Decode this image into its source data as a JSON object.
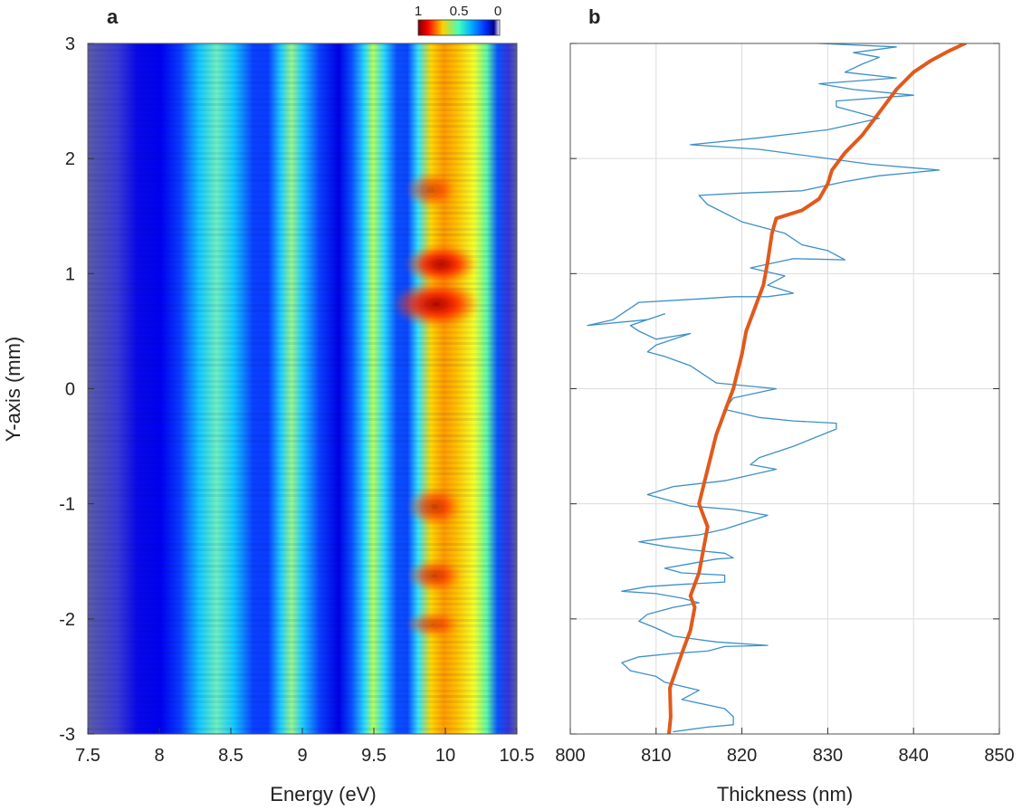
{
  "panels": {
    "a": "a",
    "b": "b"
  },
  "colorbar": {
    "labels": [
      "1",
      "0.5",
      "0"
    ],
    "values": [
      1,
      0.5,
      0
    ]
  },
  "chart_data": [
    {
      "panel": "a",
      "type": "heatmap",
      "colormap": "jet-reversed (1 = dark red, 0.5 = cyan/green, 0 = dark blue/white)",
      "xlabel": "Energy (eV)",
      "ylabel": "Y-axis (mm)",
      "xlim": [
        7.5,
        10.5
      ],
      "ylim": [
        -3,
        3
      ],
      "xticks": [
        "7.5",
        "8",
        "8.5",
        "9",
        "9.5",
        "10",
        "10.5"
      ],
      "xtick_values": [
        7.5,
        8,
        8.5,
        9,
        9.5,
        10,
        10.5
      ],
      "yticks": [
        "3",
        "2",
        "1",
        "0",
        "-1",
        "-2",
        "-3"
      ],
      "ytick_values": [
        3,
        2,
        1,
        0,
        -1,
        -2,
        -3
      ],
      "bands": [
        {
          "center_eV": 8.45,
          "peak_intensity": 0.5
        },
        {
          "center_eV": 8.88,
          "peak_intensity": 0.55
        },
        {
          "center_eV": 9.38,
          "peak_intensity": 0.6
        },
        {
          "center_eV": 9.98,
          "peak_intensity": 0.95
        }
      ]
    },
    {
      "panel": "b",
      "type": "line",
      "xlabel": "Thickness (nm)",
      "ylabel": "",
      "xlim": [
        800,
        850
      ],
      "ylim": [
        -3,
        3
      ],
      "xticks": [
        "800",
        "810",
        "820",
        "830",
        "840",
        "850"
      ],
      "xtick_values": [
        800,
        810,
        820,
        830,
        840,
        850
      ],
      "grid": true,
      "series": [
        {
          "color": "#3d8fc8",
          "width": 1.3,
          "points": [
            [
              812,
              -2.98
            ],
            [
              816,
              -2.94
            ],
            [
              819,
              -2.92
            ],
            [
              819,
              -2.85
            ],
            [
              818,
              -2.78
            ],
            [
              813,
              -2.7
            ],
            [
              815,
              -2.62
            ],
            [
              811,
              -2.55
            ],
            [
              810,
              -2.5
            ],
            [
              807,
              -2.45
            ],
            [
              806,
              -2.38
            ],
            [
              808,
              -2.33
            ],
            [
              812,
              -2.3
            ],
            [
              816,
              -2.28
            ],
            [
              818,
              -2.24
            ],
            [
              823,
              -2.23
            ],
            [
              817,
              -2.2
            ],
            [
              812,
              -2.15
            ],
            [
              810,
              -2.08
            ],
            [
              808,
              -2.02
            ],
            [
              809,
              -1.96
            ],
            [
              812,
              -1.9
            ],
            [
              815,
              -1.86
            ],
            [
              813,
              -1.82
            ],
            [
              810,
              -1.78
            ],
            [
              806,
              -1.76
            ],
            [
              809,
              -1.72
            ],
            [
              813,
              -1.7
            ],
            [
              818,
              -1.68
            ],
            [
              818,
              -1.62
            ],
            [
              813,
              -1.6
            ],
            [
              811,
              -1.56
            ],
            [
              814,
              -1.52
            ],
            [
              817,
              -1.48
            ],
            [
              819,
              -1.47
            ],
            [
              818,
              -1.43
            ],
            [
              814,
              -1.4
            ],
            [
              811,
              -1.37
            ],
            [
              808,
              -1.33
            ],
            [
              811,
              -1.3
            ],
            [
              815,
              -1.27
            ],
            [
              818,
              -1.22
            ],
            [
              823,
              -1.1
            ],
            [
              819,
              -1.05
            ],
            [
              814,
              -1.02
            ],
            [
              812,
              -0.98
            ],
            [
              809,
              -0.92
            ],
            [
              812,
              -0.85
            ],
            [
              818,
              -0.8
            ],
            [
              821,
              -0.75
            ],
            [
              824,
              -0.7
            ],
            [
              821,
              -0.66
            ],
            [
              822,
              -0.6
            ],
            [
              826,
              -0.5
            ],
            [
              831,
              -0.35
            ],
            [
              831,
              -0.3
            ],
            [
              826,
              -0.28
            ],
            [
              822,
              -0.25
            ],
            [
              818,
              -0.18
            ],
            [
              819,
              -0.08
            ],
            [
              824,
              0
            ],
            [
              817,
              0.05
            ],
            [
              816,
              0.1
            ],
            [
              814,
              0.2
            ],
            [
              811,
              0.28
            ],
            [
              809,
              0.32
            ],
            [
              810,
              0.38
            ],
            [
              814,
              0.48
            ],
            [
              810,
              0.43
            ],
            [
              808,
              0.5
            ],
            [
              807,
              0.55
            ],
            [
              811,
              0.65
            ],
            [
              809,
              0.6
            ],
            [
              802,
              0.55
            ],
            [
              805,
              0.6
            ],
            [
              808,
              0.75
            ],
            [
              815,
              0.78
            ],
            [
              819,
              0.8
            ],
            [
              823,
              0.8
            ],
            [
              826,
              0.83
            ],
            [
              823,
              0.9
            ],
            [
              825,
              0.98
            ],
            [
              821,
              1.05
            ],
            [
              826,
              1.13
            ],
            [
              832,
              1.12
            ],
            [
              830,
              1.2
            ],
            [
              827,
              1.25
            ],
            [
              825,
              1.35
            ],
            [
              820,
              1.45
            ],
            [
              816,
              1.6
            ],
            [
              815,
              1.68
            ],
            [
              820,
              1.7
            ],
            [
              827,
              1.72
            ],
            [
              832,
              1.8
            ],
            [
              836,
              1.85
            ],
            [
              843,
              1.9
            ],
            [
              835,
              1.95
            ],
            [
              828,
              2.02
            ],
            [
              822,
              2.08
            ],
            [
              814,
              2.12
            ],
            [
              822,
              2.18
            ],
            [
              830,
              2.25
            ],
            [
              836,
              2.35
            ],
            [
              831,
              2.45
            ],
            [
              831,
              2.5
            ],
            [
              840,
              2.55
            ],
            [
              833,
              2.6
            ],
            [
              829,
              2.65
            ],
            [
              838,
              2.7
            ],
            [
              832,
              2.75
            ],
            [
              834,
              2.82
            ],
            [
              836,
              2.88
            ],
            [
              833,
              2.92
            ],
            [
              838,
              2.97
            ],
            [
              829,
              3.0
            ]
          ]
        },
        {
          "color": "#e05a1c",
          "width": 4,
          "points": [
            [
              811.5,
              -3.0
            ],
            [
              811.7,
              -2.85
            ],
            [
              811.6,
              -2.6
            ],
            [
              813,
              -2.3
            ],
            [
              814,
              -2.1
            ],
            [
              814.5,
              -1.9
            ],
            [
              814,
              -1.8
            ],
            [
              815,
              -1.6
            ],
            [
              816,
              -1.2
            ],
            [
              815,
              -1.0
            ],
            [
              816,
              -0.7
            ],
            [
              817,
              -0.4
            ],
            [
              818,
              -0.2
            ],
            [
              819,
              0
            ],
            [
              820,
              0.3
            ],
            [
              820.5,
              0.5
            ],
            [
              821.5,
              0.7
            ],
            [
              822.5,
              0.9
            ],
            [
              823,
              1.1
            ],
            [
              823.5,
              1.35
            ],
            [
              824,
              1.48
            ],
            [
              827,
              1.55
            ],
            [
              829,
              1.65
            ],
            [
              830,
              1.78
            ],
            [
              830.5,
              1.9
            ],
            [
              832,
              2.05
            ],
            [
              834,
              2.2
            ],
            [
              836,
              2.4
            ],
            [
              838,
              2.6
            ],
            [
              840,
              2.75
            ],
            [
              842,
              2.85
            ],
            [
              844,
              2.93
            ],
            [
              846,
              3.0
            ]
          ]
        }
      ]
    }
  ]
}
